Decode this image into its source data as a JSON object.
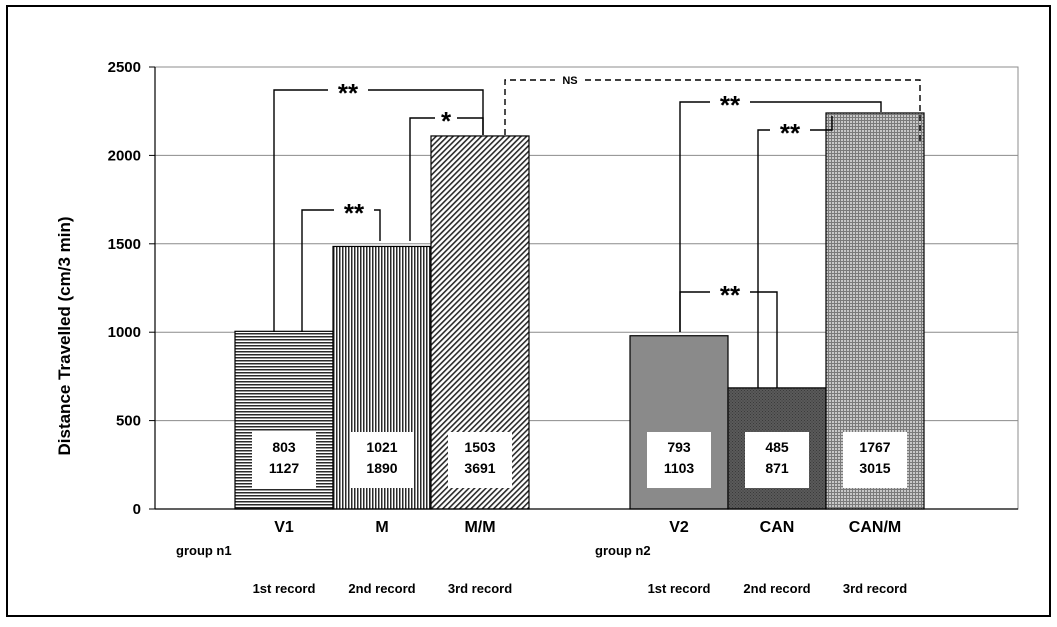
{
  "chart_data": {
    "type": "bar",
    "ylabel": "Distance Travelled (cm/3 min)",
    "ylim": [
      0,
      2500
    ],
    "yticks": [
      0,
      500,
      1000,
      1500,
      2000,
      2500
    ],
    "grid": true,
    "groups": [
      {
        "label": "group n1",
        "bars": [
          {
            "category": "V1",
            "value": 1005,
            "range_low": "803",
            "range_high": "1127",
            "pattern": "horizontal-lines",
            "record": "1st record"
          },
          {
            "category": "M",
            "value": 1485,
            "range_low": "1021",
            "range_high": "1890",
            "pattern": "vertical-lines",
            "record": "2nd record"
          },
          {
            "category": "M/M",
            "value": 2110,
            "range_low": "1503",
            "range_high": "3691",
            "pattern": "diagonal-lines",
            "record": "3rd record"
          }
        ]
      },
      {
        "label": "group n2",
        "bars": [
          {
            "category": "V2",
            "value": 980,
            "range_low": "793",
            "range_high": "1103",
            "pattern": "solid-gray",
            "record": "1st record"
          },
          {
            "category": "CAN",
            "value": 685,
            "range_low": "485",
            "range_high": "871",
            "pattern": "dark-crosshatch",
            "record": "2nd record"
          },
          {
            "category": "CAN/M",
            "value": 2240,
            "range_low": "1767",
            "range_high": "3015",
            "pattern": "fine-grid",
            "record": "3rd record"
          }
        ]
      }
    ],
    "annotations": [
      {
        "from": "V1",
        "to": "M/M",
        "label": "**",
        "style": "solid"
      },
      {
        "from": "V1",
        "to": "M",
        "label": "**",
        "style": "solid"
      },
      {
        "from": "M",
        "to": "M/M",
        "label": "*",
        "style": "solid"
      },
      {
        "from": "M/M",
        "to": "CAN/M",
        "label": "NS",
        "style": "dashed"
      },
      {
        "from": "V2",
        "to": "CAN/M",
        "label": "**",
        "style": "solid"
      },
      {
        "from": "CAN",
        "to": "CAN/M",
        "label": "**",
        "style": "solid"
      },
      {
        "from": "V2",
        "to": "CAN",
        "label": "**",
        "style": "solid"
      }
    ]
  }
}
